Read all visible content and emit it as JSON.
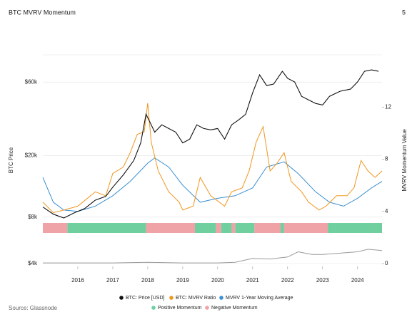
{
  "page_number": "5",
  "chart_data": {
    "type": "line",
    "title": "BTC MVRV Momentum",
    "ylabel": "BTC Price",
    "y2label": "MVRV Momentum Value",
    "source": "Source: Glassnode",
    "xlim": [
      2015,
      2024.7
    ],
    "xticks": [
      2016,
      2017,
      2018,
      2019,
      2020,
      2021,
      2022,
      2023,
      2024
    ],
    "ylim": [
      4000,
      90000
    ],
    "ylog": true,
    "yticks": [
      {
        "value": 4000,
        "label": "$4k"
      },
      {
        "value": 8000,
        "label": "$8k"
      },
      {
        "value": 20000,
        "label": "$20k"
      },
      {
        "value": 60000,
        "label": "$60k"
      }
    ],
    "y2lim": [
      0,
      16
    ],
    "y2ticks": [
      0,
      4,
      8,
      12
    ],
    "grid": true,
    "series": [
      {
        "name": "BTC: Price [USD]",
        "color": "#111111",
        "axis": "y",
        "x": [
          2015.0,
          2015.3,
          2015.6,
          2015.9,
          2016.2,
          2016.5,
          2016.8,
          2017.0,
          2017.3,
          2017.6,
          2017.8,
          2017.95,
          2018.05,
          2018.2,
          2018.4,
          2018.6,
          2018.8,
          2019.0,
          2019.2,
          2019.4,
          2019.6,
          2019.8,
          2020.0,
          2020.2,
          2020.4,
          2020.6,
          2020.8,
          2021.0,
          2021.2,
          2021.4,
          2021.6,
          2021.85,
          2022.0,
          2022.2,
          2022.4,
          2022.6,
          2022.8,
          2023.0,
          2023.2,
          2023.5,
          2023.8,
          2024.0,
          2024.2,
          2024.4,
          2024.6
        ],
        "values": [
          9300,
          8350,
          7900,
          8530,
          9100,
          10300,
          10900,
          12500,
          15000,
          18600,
          24200,
          37100,
          33400,
          28400,
          31700,
          30000,
          28400,
          24200,
          25600,
          31700,
          30000,
          29400,
          30000,
          25600,
          31700,
          34100,
          37100,
          51100,
          66800,
          56900,
          58200,
          70400,
          63400,
          60100,
          48500,
          46000,
          43600,
          42600,
          48500,
          52300,
          54000,
          60100,
          70400,
          71900,
          70400
        ]
      },
      {
        "name": "BTC: MVRV Ratio",
        "color": "#f0961e",
        "axis": "y2",
        "x": [
          2015.0,
          2015.3,
          2015.6,
          2016.0,
          2016.5,
          2016.8,
          2017.0,
          2017.3,
          2017.5,
          2017.7,
          2017.9,
          2018.0,
          2018.1,
          2018.3,
          2018.6,
          2018.9,
          2019.0,
          2019.3,
          2019.5,
          2019.8,
          2020.2,
          2020.4,
          2020.7,
          2020.9,
          2021.1,
          2021.3,
          2021.5,
          2021.7,
          2021.9,
          2022.1,
          2022.4,
          2022.6,
          2022.9,
          2023.1,
          2023.4,
          2023.7,
          2023.9,
          2024.1,
          2024.3,
          2024.5,
          2024.7
        ],
        "values": [
          4.7,
          3.9,
          4.1,
          4.4,
          5.5,
          5.2,
          6.9,
          7.4,
          8.5,
          9.9,
          10.1,
          12.3,
          9.3,
          7.1,
          5.5,
          4.7,
          4.1,
          4.4,
          6.6,
          5.2,
          4.4,
          5.5,
          5.8,
          7.1,
          9.3,
          10.5,
          7.1,
          7.7,
          8.5,
          6.3,
          5.5,
          4.7,
          4.1,
          4.4,
          5.2,
          5.2,
          5.8,
          7.9,
          7.1,
          6.6,
          7.1
        ]
      },
      {
        "name": "MVRV 1-Year Moving Average",
        "color": "#3a8fd0",
        "axis": "y2",
        "x": [
          2015.0,
          2015.3,
          2015.6,
          2016.0,
          2016.5,
          2017.0,
          2017.5,
          2018.0,
          2018.2,
          2018.6,
          2019.0,
          2019.5,
          2020.0,
          2020.5,
          2021.0,
          2021.4,
          2021.9,
          2022.3,
          2022.8,
          2023.2,
          2023.6,
          2024.0,
          2024.4,
          2024.7
        ],
        "values": [
          6.6,
          4.7,
          4.1,
          4.0,
          4.4,
          5.2,
          6.3,
          7.7,
          8.1,
          7.4,
          6.0,
          4.7,
          5.0,
          5.2,
          5.8,
          7.4,
          7.8,
          6.9,
          5.5,
          4.7,
          4.4,
          5.0,
          5.8,
          6.3
        ]
      },
      {
        "color": "#9a9a9a",
        "axis": "y2",
        "x": [
          2015.0,
          2016.0,
          2017.0,
          2018.0,
          2019.0,
          2020.0,
          2020.5,
          2021.0,
          2021.5,
          2022.0,
          2022.3,
          2022.7,
          2023.0,
          2023.5,
          2024.0,
          2024.3,
          2024.7
        ],
        "values": [
          0.05,
          0.05,
          0.05,
          0.1,
          0.05,
          0.05,
          0.1,
          0.4,
          0.35,
          0.5,
          0.9,
          0.7,
          0.7,
          0.8,
          0.9,
          1.1,
          1.0
        ]
      }
    ],
    "bands": [
      {
        "name": "Positive Momentum",
        "color": "#6fcf9f",
        "ranges": [
          [
            2015.7,
            2017.95
          ],
          [
            2019.35,
            2019.95
          ],
          [
            2020.1,
            2020.4
          ],
          [
            2020.5,
            2021.05
          ],
          [
            2021.8,
            2021.9
          ],
          [
            2023.15,
            2024.7
          ]
        ]
      },
      {
        "name": "Negative Momentum",
        "color": "#f0a3a6",
        "ranges": [
          [
            2015.0,
            2015.7
          ],
          [
            2017.95,
            2019.35
          ],
          [
            2019.95,
            2020.1
          ],
          [
            2020.4,
            2020.5
          ],
          [
            2021.05,
            2021.8
          ],
          [
            2021.9,
            2023.15
          ]
        ]
      }
    ]
  }
}
